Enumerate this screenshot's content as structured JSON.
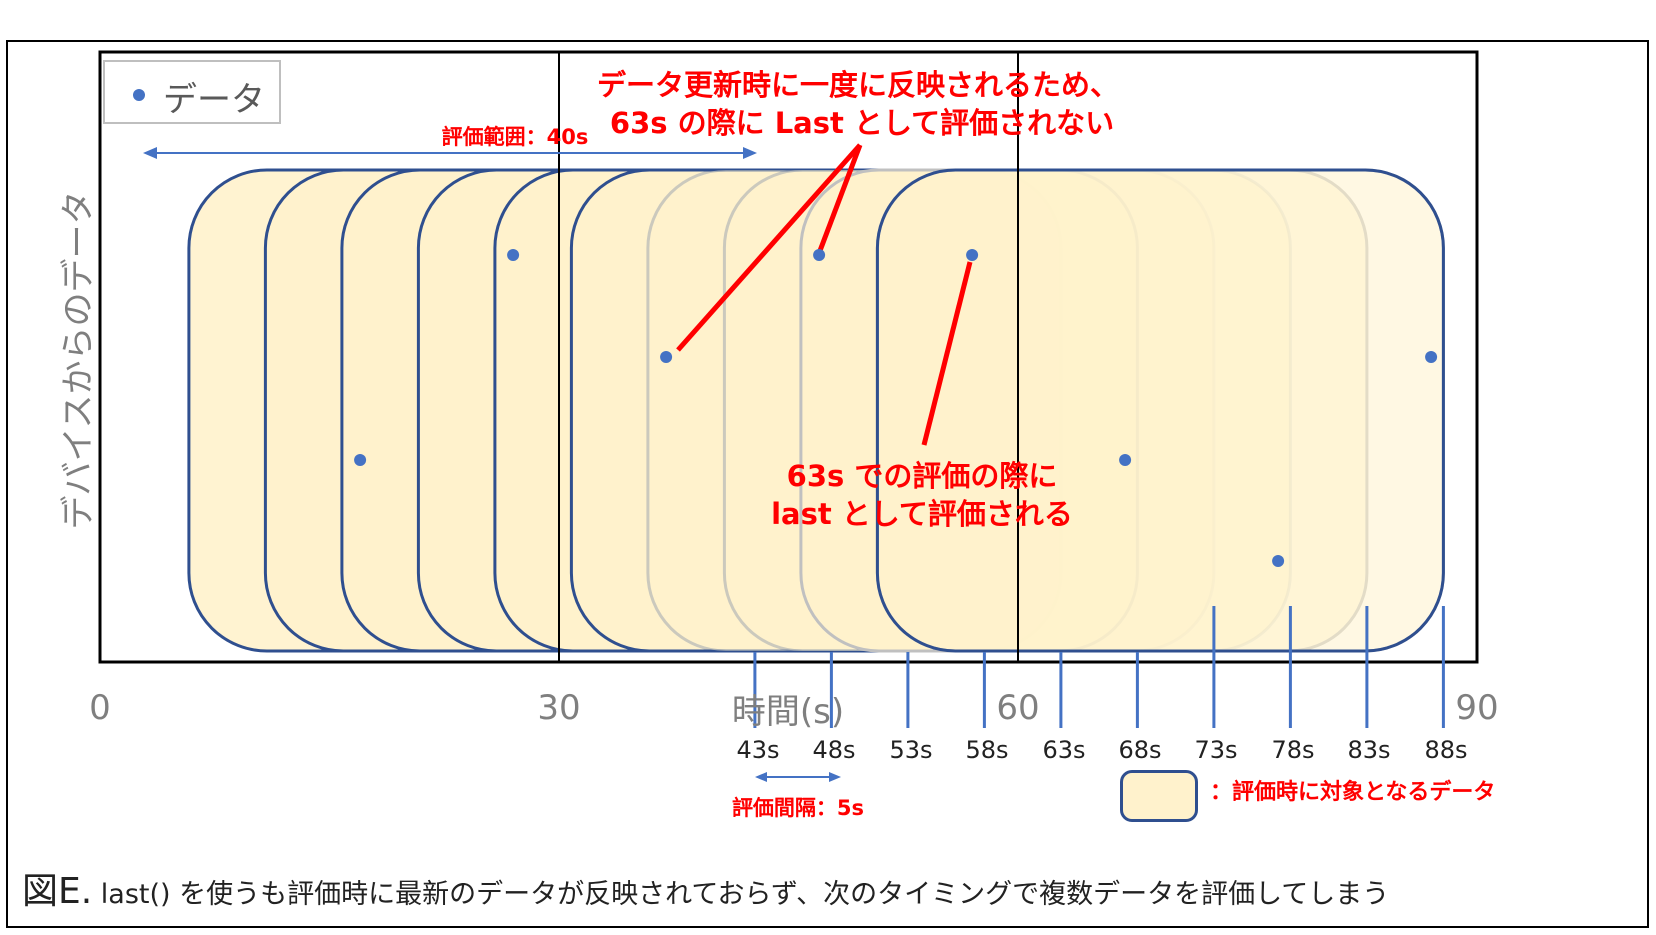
{
  "legend": {
    "label": "データ"
  },
  "y_axis_title": "デバイスからのデータ",
  "x_axis_title": "時間(s)",
  "x_ticks": [
    {
      "value": 0,
      "label": "0"
    },
    {
      "value": 30,
      "label": "30"
    },
    {
      "value": 60,
      "label": "60"
    },
    {
      "value": 90,
      "label": "90"
    }
  ],
  "eval_times": [
    "43s",
    "48s",
    "53s",
    "58s",
    "63s",
    "68s",
    "73s",
    "78s",
    "83s",
    "88s"
  ],
  "annotations": {
    "range": "評価範囲：40s",
    "interval": "評価間隔：5s",
    "top_line1": "データ更新時に一度に反映されるため、",
    "top_line2": "63s の際に Last として評価されない",
    "mid_line1": "63s での評価の際に",
    "mid_line2": "last として評価される",
    "swatch_label": "：評価時に対象となるデータ"
  },
  "caption": {
    "fig": "図E.",
    "text": " last() を使うも評価時に最新のデータが反映されておらず、次のタイミングで複数データを評価してしまう"
  },
  "colors": {
    "point": "#4472C4",
    "window_fill": "#fff2cc",
    "window_border": "#2f4f8f",
    "red": "#ff0000"
  },
  "chart_data": {
    "type": "scatter",
    "xlim": [
      0,
      90
    ],
    "ylabel": "デバイスからのデータ",
    "xlabel": "時間(s)",
    "series": [
      {
        "name": "データ",
        "points": [
          [
            17,
            2
          ],
          [
            27,
            4
          ],
          [
            37,
            3
          ],
          [
            47,
            4
          ],
          [
            57,
            4
          ],
          [
            67,
            2
          ],
          [
            77,
            1
          ],
          [
            87,
            3
          ]
        ]
      }
    ],
    "vertical_lines": [
      30,
      60
    ],
    "eval_windows_end": [
      43,
      48,
      53,
      58,
      63,
      68,
      73,
      78,
      83,
      88
    ],
    "window_length": 40
  }
}
